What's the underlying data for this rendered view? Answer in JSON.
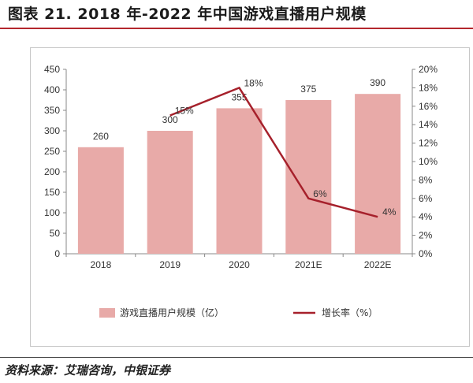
{
  "figure": {
    "title": "图表 21. 2018 年-2022 年中国游戏直播用户规模",
    "source": "资料来源：艾瑞咨询，中银证券"
  },
  "colors": {
    "bar": "#e8aaa8",
    "line": "#a6202b",
    "rule": "#b3272d"
  },
  "chart_data": {
    "type": "bar",
    "categories": [
      "2018",
      "2019",
      "2020",
      "2021E",
      "2022E"
    ],
    "series": [
      {
        "name": "游戏直播用户规模（亿）",
        "type": "bar",
        "axis": "left",
        "values": [
          260,
          300,
          355,
          375,
          390
        ],
        "labels": [
          "260",
          "300",
          "355",
          "375",
          "390"
        ]
      },
      {
        "name": "增长率（%）",
        "type": "line",
        "axis": "right",
        "values": [
          null,
          15,
          18,
          6,
          4
        ],
        "labels": [
          "",
          "15%",
          "18%",
          "6%",
          "4%"
        ]
      }
    ],
    "y_left": {
      "min": 0,
      "max": 450,
      "step": 50,
      "ticks": [
        "0",
        "50",
        "100",
        "150",
        "200",
        "250",
        "300",
        "350",
        "400",
        "450"
      ]
    },
    "y_right": {
      "min": 0,
      "max": 20,
      "step": 2,
      "ticks": [
        "0%",
        "2%",
        "4%",
        "6%",
        "8%",
        "10%",
        "12%",
        "14%",
        "16%",
        "18%",
        "20%"
      ]
    },
    "legend_position": "bottom",
    "grid": false
  }
}
